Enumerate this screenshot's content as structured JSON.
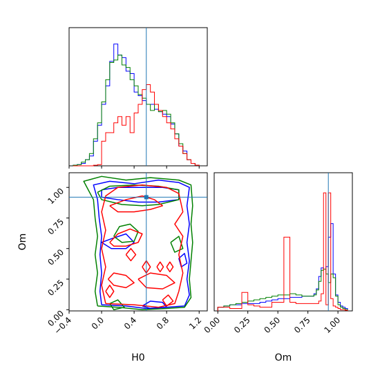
{
  "chart_data": {
    "type": "corner",
    "colors": {
      "blue": "#0000ff",
      "green": "#008000",
      "red": "#ff0000",
      "truth": "#1f77b4"
    },
    "truth": {
      "H0": 0.55,
      "Om": 0.92
    },
    "axes": {
      "H0": {
        "label": "H0",
        "range": [
          -0.4,
          1.3
        ],
        "ticks": [
          -0.4,
          0.0,
          0.4,
          0.8,
          1.2
        ],
        "tick_labels": [
          "−0.4",
          "0.0",
          "0.4",
          "0.8",
          "1.2"
        ]
      },
      "Om": {
        "label": "Om",
        "range": [
          -0.01,
          1.12
        ],
        "ticks": [
          0.0,
          0.25,
          0.5,
          0.75,
          1.0
        ],
        "tick_labels": [
          "0.00",
          "0.25",
          "0.50",
          "0.75",
          "1.00"
        ]
      }
    },
    "hist_H0": {
      "x_edges": [
        -0.35,
        -0.3,
        -0.25,
        -0.2,
        -0.15,
        -0.1,
        -0.05,
        0.0,
        0.05,
        0.1,
        0.15,
        0.2,
        0.25,
        0.3,
        0.35,
        0.4,
        0.45,
        0.5,
        0.55,
        0.6,
        0.65,
        0.7,
        0.75,
        0.8,
        0.85,
        0.9,
        0.95,
        1.0,
        1.05,
        1.1,
        1.15,
        1.2
      ],
      "ymax": 1.0,
      "series": [
        {
          "color": "blue",
          "values": [
            0.005,
            0.01,
            0.02,
            0.05,
            0.08,
            0.2,
            0.33,
            0.5,
            0.65,
            0.85,
            0.99,
            0.9,
            0.88,
            0.77,
            0.75,
            0.6,
            0.57,
            0.53,
            0.5,
            0.5,
            0.46,
            0.44,
            0.42,
            0.4,
            0.34,
            0.26,
            0.16,
            0.12,
            0.05,
            0.02,
            0.005
          ]
        },
        {
          "color": "green",
          "values": [
            0.005,
            0.01,
            0.03,
            0.05,
            0.1,
            0.22,
            0.35,
            0.52,
            0.7,
            0.84,
            0.86,
            0.9,
            0.82,
            0.8,
            0.7,
            0.65,
            0.58,
            0.55,
            0.5,
            0.45,
            0.5,
            0.44,
            0.45,
            0.42,
            0.35,
            0.26,
            0.18,
            0.1,
            0.05,
            0.02,
            0.005
          ]
        },
        {
          "color": "red",
          "values": [
            0,
            0,
            0,
            0,
            0,
            0.005,
            0.01,
            0.2,
            0.27,
            0.27,
            0.35,
            0.4,
            0.33,
            0.4,
            0.27,
            0.43,
            0.5,
            0.62,
            0.66,
            0.6,
            0.5,
            0.45,
            0.4,
            0.35,
            0.3,
            0.22,
            0.16,
            0.1,
            0.05,
            0.02,
            0.005
          ]
        }
      ]
    },
    "hist_Om": {
      "x_edges": [
        0.0,
        0.05,
        0.1,
        0.15,
        0.2,
        0.25,
        0.3,
        0.35,
        0.4,
        0.45,
        0.5,
        0.55,
        0.6,
        0.65,
        0.7,
        0.75,
        0.8,
        0.82,
        0.84,
        0.86,
        0.88,
        0.9,
        0.92,
        0.94,
        0.96,
        0.98,
        1.0,
        1.02,
        1.04,
        1.06,
        1.08
      ],
      "ymax": 1.0,
      "series": [
        {
          "color": "blue",
          "values": [
            0.03,
            0.04,
            0.05,
            0.05,
            0.06,
            0.06,
            0.06,
            0.07,
            0.08,
            0.09,
            0.1,
            0.1,
            0.11,
            0.11,
            0.12,
            0.12,
            0.14,
            0.18,
            0.28,
            0.35,
            0.34,
            0.36,
            0.6,
            0.71,
            0.3,
            0.13,
            0.07,
            0.04,
            0.03,
            0.02
          ]
        },
        {
          "color": "green",
          "values": [
            0.03,
            0.04,
            0.05,
            0.06,
            0.07,
            0.08,
            0.09,
            0.1,
            0.11,
            0.12,
            0.13,
            0.13,
            0.14,
            0.13,
            0.12,
            0.12,
            0.13,
            0.17,
            0.24,
            0.33,
            0.34,
            0.3,
            0.23,
            0.3,
            0.27,
            0.12,
            0.05,
            0.03,
            0.02,
            0.01
          ]
        },
        {
          "color": "red",
          "values": [
            0.03,
            0.03,
            0.02,
            0.02,
            0.15,
            0.05,
            0.04,
            0.03,
            0.03,
            0.07,
            0.07,
            0.6,
            0.07,
            0.06,
            0.06,
            0.06,
            0.06,
            0.06,
            0.08,
            0.14,
            0.96,
            0.05,
            0.96,
            0.1,
            0.04,
            0.03,
            0.02,
            0.01,
            0.01,
            0.005
          ]
        }
      ]
    },
    "contours": [
      {
        "color": "blue",
        "paths": [
          [
            [
              0.0,
              0.04
            ],
            [
              -0.02,
              0.15
            ],
            [
              0.0,
              0.3
            ],
            [
              -0.02,
              0.45
            ],
            [
              0.0,
              0.6
            ],
            [
              -0.03,
              0.75
            ],
            [
              -0.05,
              0.9
            ],
            [
              -0.1,
              1.02
            ],
            [
              0.1,
              1.05
            ],
            [
              0.4,
              1.03
            ],
            [
              0.7,
              1.06
            ],
            [
              0.95,
              1.04
            ],
            [
              1.08,
              1.0
            ],
            [
              1.05,
              0.85
            ],
            [
              1.08,
              0.7
            ],
            [
              1.05,
              0.55
            ],
            [
              1.08,
              0.4
            ],
            [
              1.05,
              0.25
            ],
            [
              1.08,
              0.12
            ],
            [
              1.02,
              0.03
            ],
            [
              0.8,
              0.02
            ],
            [
              0.55,
              0.01
            ],
            [
              0.3,
              0.03
            ],
            [
              0.0,
              0.04
            ]
          ],
          [
            [
              0.0,
              0.98
            ],
            [
              0.2,
              1.0
            ],
            [
              0.5,
              1.0
            ],
            [
              0.75,
              1.0
            ],
            [
              0.95,
              0.98
            ],
            [
              0.95,
              0.9
            ],
            [
              0.7,
              0.88
            ],
            [
              0.45,
              0.88
            ],
            [
              0.2,
              0.9
            ],
            [
              0.0,
              0.92
            ],
            [
              0.0,
              0.98
            ]
          ],
          [
            [
              0.0,
              0.55
            ],
            [
              0.12,
              0.58
            ],
            [
              0.3,
              0.62
            ],
            [
              0.4,
              0.55
            ],
            [
              0.3,
              0.5
            ],
            [
              0.12,
              0.5
            ],
            [
              0.0,
              0.55
            ]
          ],
          [
            [
              0.5,
              0.03
            ],
            [
              0.6,
              0.07
            ],
            [
              0.75,
              0.06
            ],
            [
              0.8,
              0.02
            ],
            [
              0.6,
              0.01
            ],
            [
              0.5,
              0.03
            ]
          ],
          [
            [
              0.95,
              0.42
            ],
            [
              1.02,
              0.46
            ],
            [
              1.05,
              0.38
            ],
            [
              0.98,
              0.35
            ],
            [
              0.95,
              0.42
            ]
          ]
        ]
      },
      {
        "color": "green",
        "paths": [
          [
            [
              -0.05,
              0.03
            ],
            [
              -0.08,
              0.15
            ],
            [
              -0.05,
              0.3
            ],
            [
              -0.08,
              0.45
            ],
            [
              -0.05,
              0.6
            ],
            [
              -0.08,
              0.75
            ],
            [
              -0.1,
              0.9
            ],
            [
              -0.22,
              1.05
            ],
            [
              0.0,
              1.09
            ],
            [
              0.3,
              1.06
            ],
            [
              0.6,
              1.08
            ],
            [
              0.95,
              1.06
            ],
            [
              1.1,
              1.02
            ],
            [
              1.12,
              0.85
            ],
            [
              1.1,
              0.7
            ],
            [
              1.12,
              0.55
            ],
            [
              1.1,
              0.4
            ],
            [
              1.08,
              0.25
            ],
            [
              1.1,
              0.1
            ],
            [
              1.02,
              0.02
            ],
            [
              0.8,
              0.01
            ],
            [
              0.5,
              0.0
            ],
            [
              0.2,
              0.02
            ],
            [
              -0.05,
              0.03
            ]
          ],
          [
            [
              -0.05,
              0.96
            ],
            [
              0.1,
              1.01
            ],
            [
              0.4,
              1.02
            ],
            [
              0.7,
              1.01
            ],
            [
              0.95,
              0.98
            ],
            [
              0.95,
              0.9
            ],
            [
              0.7,
              0.86
            ],
            [
              0.5,
              0.85
            ],
            [
              0.25,
              0.86
            ],
            [
              0.0,
              0.9
            ],
            [
              -0.05,
              0.96
            ]
          ],
          [
            [
              0.15,
              0.6
            ],
            [
              0.22,
              0.68
            ],
            [
              0.35,
              0.7
            ],
            [
              0.45,
              0.64
            ],
            [
              0.4,
              0.56
            ],
            [
              0.25,
              0.55
            ],
            [
              0.15,
              0.6
            ]
          ],
          [
            [
              0.1,
              0.05
            ],
            [
              0.2,
              0.08
            ],
            [
              0.28,
              0.02
            ],
            [
              0.15,
              0.0
            ],
            [
              0.1,
              0.05
            ]
          ],
          [
            [
              0.85,
              0.55
            ],
            [
              0.95,
              0.6
            ],
            [
              1.0,
              0.5
            ],
            [
              0.9,
              0.47
            ],
            [
              0.85,
              0.55
            ]
          ]
        ]
      },
      {
        "color": "red",
        "paths": [
          [
            [
              0.05,
              0.05
            ],
            [
              0.0,
              0.2
            ],
            [
              0.05,
              0.35
            ],
            [
              0.0,
              0.5
            ],
            [
              0.05,
              0.65
            ],
            [
              0.0,
              0.8
            ],
            [
              0.05,
              0.93
            ],
            [
              0.2,
              1.0
            ],
            [
              0.5,
              1.02
            ],
            [
              0.8,
              1.0
            ],
            [
              0.95,
              0.95
            ],
            [
              1.0,
              0.8
            ],
            [
              0.9,
              0.7
            ],
            [
              1.0,
              0.6
            ],
            [
              0.95,
              0.45
            ],
            [
              1.0,
              0.3
            ],
            [
              0.95,
              0.15
            ],
            [
              0.9,
              0.05
            ],
            [
              0.7,
              0.02
            ],
            [
              0.4,
              0.04
            ],
            [
              0.05,
              0.05
            ]
          ],
          [
            [
              0.1,
              0.85
            ],
            [
              0.3,
              0.9
            ],
            [
              0.5,
              0.93
            ],
            [
              0.65,
              0.9
            ],
            [
              0.75,
              0.85
            ],
            [
              0.6,
              0.82
            ],
            [
              0.4,
              0.8
            ],
            [
              0.2,
              0.8
            ],
            [
              0.1,
              0.85
            ]
          ],
          [
            [
              0.1,
              0.55
            ],
            [
              0.2,
              0.62
            ],
            [
              0.35,
              0.66
            ],
            [
              0.5,
              0.62
            ],
            [
              0.45,
              0.55
            ],
            [
              0.3,
              0.52
            ],
            [
              0.15,
              0.52
            ],
            [
              0.1,
              0.55
            ]
          ],
          [
            [
              0.08,
              0.25
            ],
            [
              0.15,
              0.3
            ],
            [
              0.3,
              0.28
            ],
            [
              0.4,
              0.22
            ],
            [
              0.3,
              0.18
            ],
            [
              0.15,
              0.2
            ],
            [
              0.08,
              0.25
            ]
          ],
          [
            [
              0.45,
              0.25
            ],
            [
              0.6,
              0.3
            ],
            [
              0.8,
              0.28
            ],
            [
              0.9,
              0.22
            ],
            [
              0.75,
              0.17
            ],
            [
              0.55,
              0.18
            ],
            [
              0.45,
              0.25
            ]
          ],
          [
            [
              0.3,
              0.45
            ],
            [
              0.36,
              0.5
            ],
            [
              0.42,
              0.45
            ],
            [
              0.36,
              0.4
            ],
            [
              0.3,
              0.45
            ]
          ],
          [
            [
              0.5,
              0.35
            ],
            [
              0.55,
              0.4
            ],
            [
              0.6,
              0.35
            ],
            [
              0.55,
              0.3
            ],
            [
              0.5,
              0.35
            ]
          ],
          [
            [
              0.68,
              0.35
            ],
            [
              0.72,
              0.39
            ],
            [
              0.76,
              0.35
            ],
            [
              0.72,
              0.31
            ],
            [
              0.68,
              0.35
            ]
          ],
          [
            [
              0.8,
              0.35
            ],
            [
              0.84,
              0.39
            ],
            [
              0.88,
              0.35
            ],
            [
              0.84,
              0.31
            ],
            [
              0.8,
              0.35
            ]
          ],
          [
            [
              0.05,
              0.15
            ],
            [
              0.1,
              0.2
            ],
            [
              0.15,
              0.15
            ],
            [
              0.1,
              0.1
            ],
            [
              0.05,
              0.15
            ]
          ],
          [
            [
              0.75,
              0.08
            ],
            [
              0.82,
              0.12
            ],
            [
              0.88,
              0.07
            ],
            [
              0.8,
              0.03
            ],
            [
              0.75,
              0.08
            ]
          ]
        ]
      }
    ]
  }
}
